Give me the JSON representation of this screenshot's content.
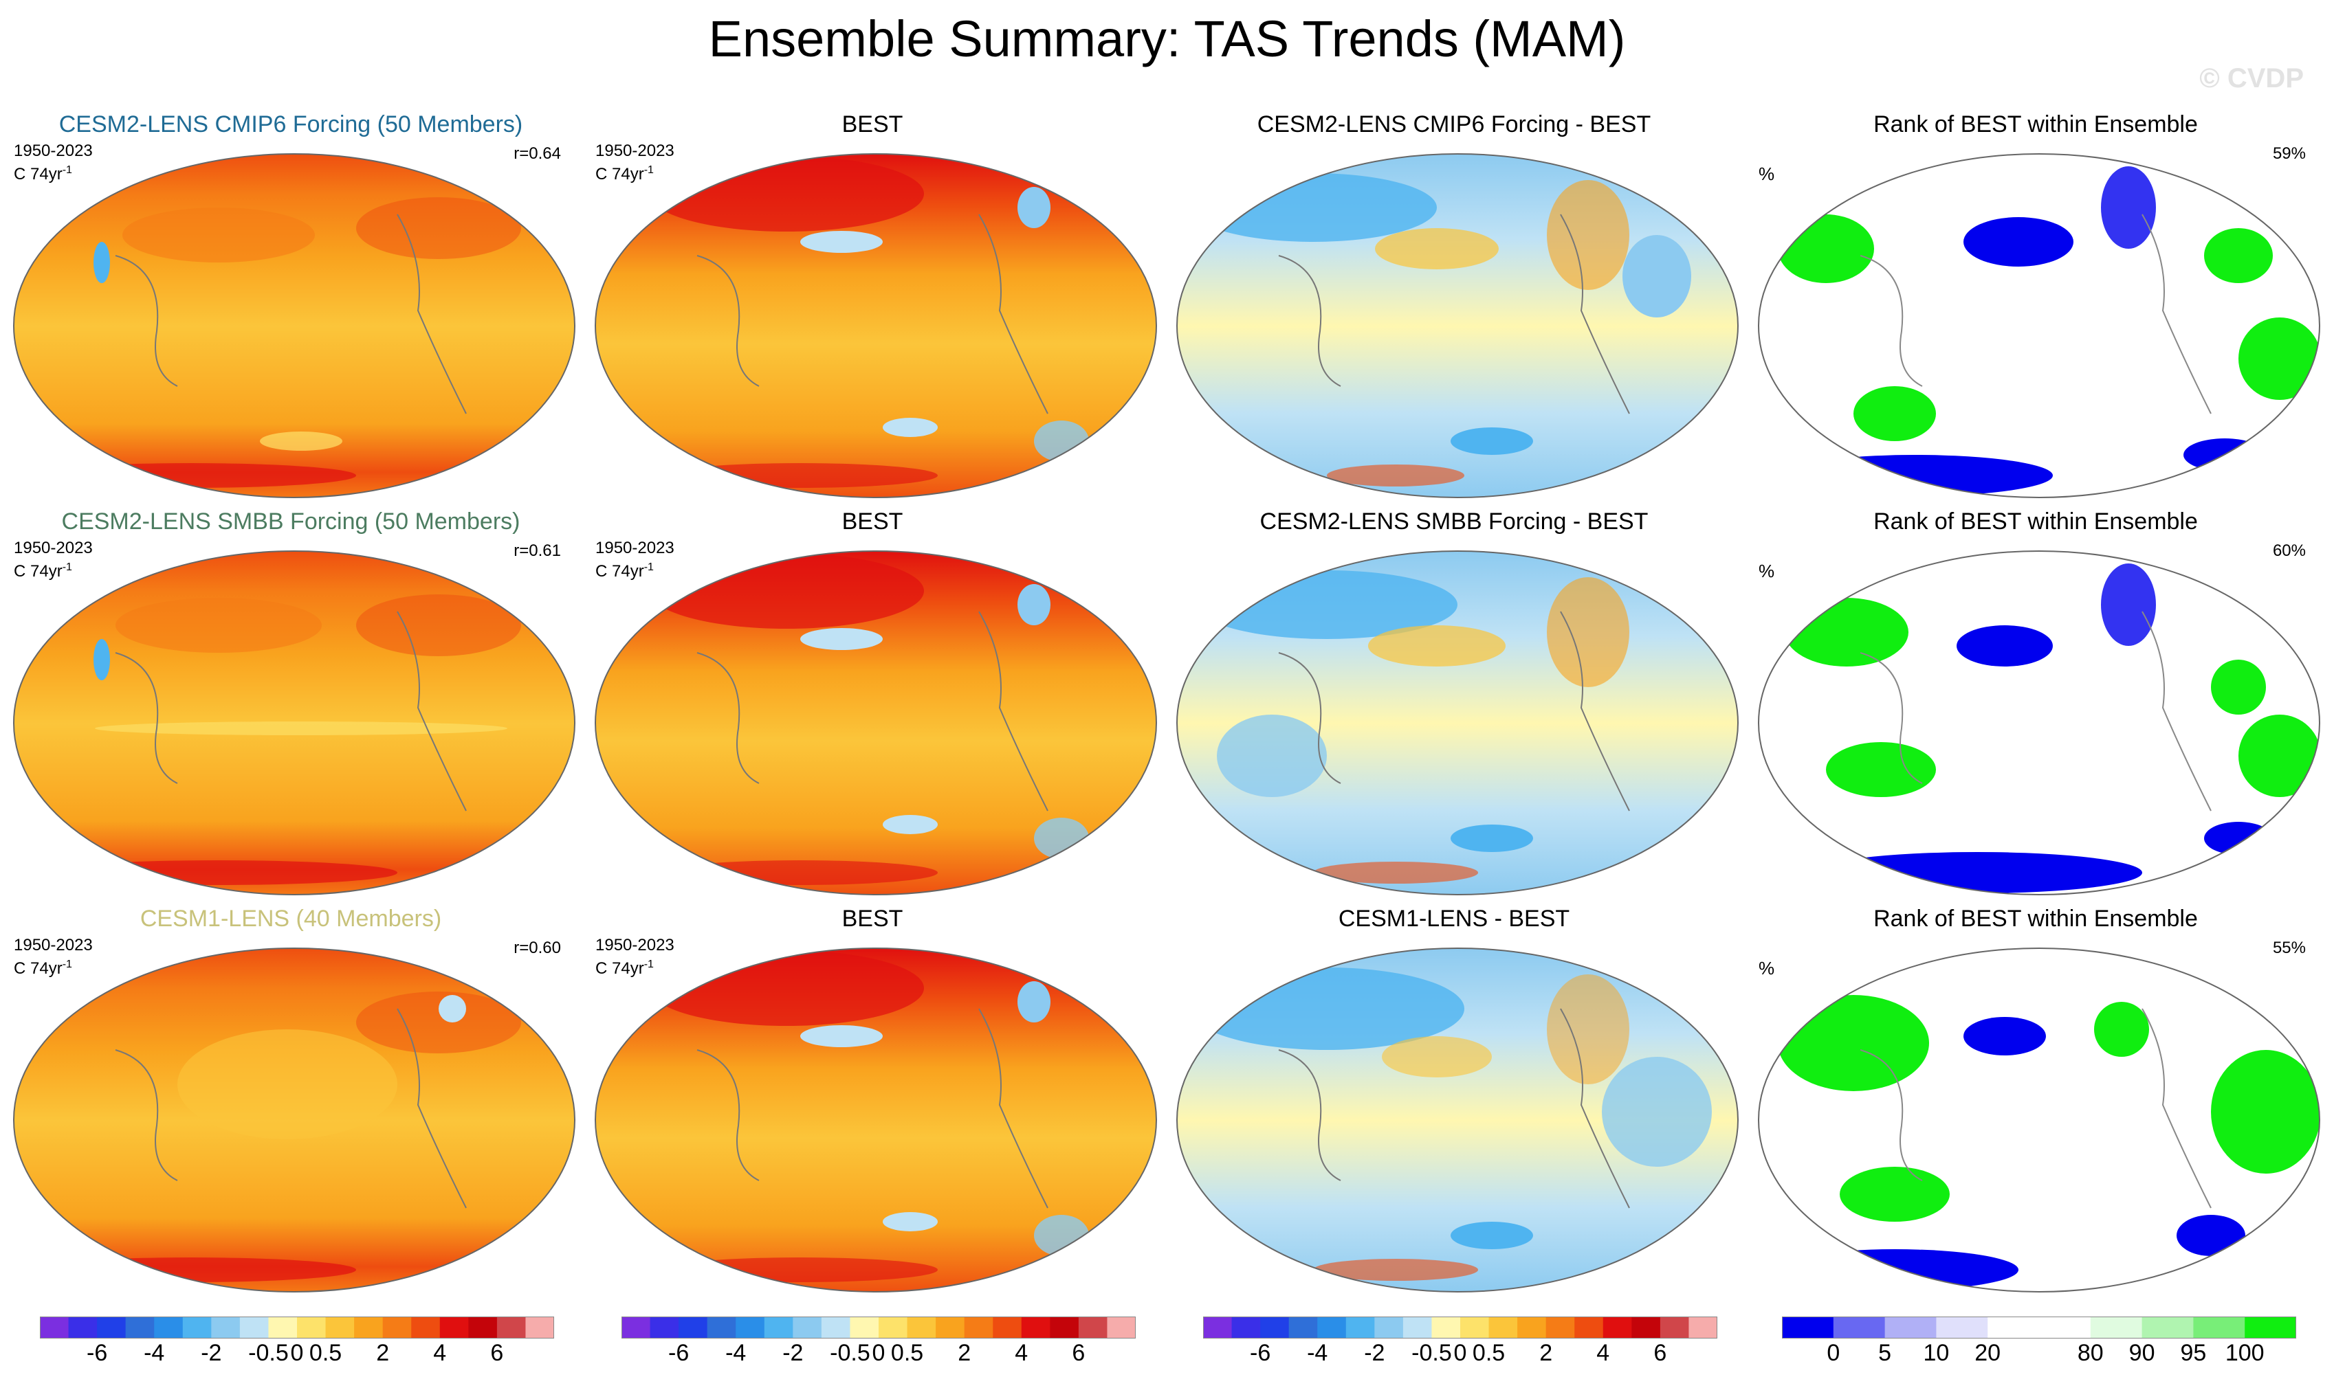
{
  "title": "Ensemble Summary: TAS Trends (MAM)",
  "watermark": "© CVDP",
  "colors": {
    "title_cmip6": "#1f6b95",
    "title_smbb": "#4c7c60",
    "title_cesm1": "#c8c27a"
  },
  "rows": [
    {
      "model_title": "CESM2-LENS CMIP6 Forcing (50 Members)",
      "period": "1950-2023",
      "units_base": "C 74yr",
      "units_exp": "-1",
      "r_value": "r=0.64",
      "obs_title": "BEST",
      "obs_period": "1950-2023",
      "diff_title": "CESM2-LENS CMIP6 Forcing - BEST",
      "rank_title": "Rank of BEST within Ensemble",
      "rank_pctsign": "%",
      "rank_pct": "59%"
    },
    {
      "model_title": "CESM2-LENS SMBB Forcing (50 Members)",
      "period": "1950-2023",
      "units_base": "C 74yr",
      "units_exp": "-1",
      "r_value": "r=0.61",
      "obs_title": "BEST",
      "obs_period": "1950-2023",
      "diff_title": "CESM2-LENS SMBB Forcing - BEST",
      "rank_title": "Rank of BEST within Ensemble",
      "rank_pctsign": "%",
      "rank_pct": "60%"
    },
    {
      "model_title": "CESM1-LENS (40 Members)",
      "period": "1950-2023",
      "units_base": "C 74yr",
      "units_exp": "-1",
      "r_value": "r=0.60",
      "obs_title": "BEST",
      "obs_period": "1950-2023",
      "diff_title": "CESM1-LENS - BEST",
      "rank_title": "Rank of BEST within Ensemble",
      "rank_pctsign": "%",
      "rank_pct": "55%"
    }
  ],
  "chart_data": {
    "type": "map-panels",
    "title": "Ensemble Summary: TAS Trends (MAM)",
    "panel_types": [
      "model ensemble mean trend",
      "observed trend",
      "model minus observed",
      "rank of observations within ensemble"
    ],
    "trend_colorbar": {
      "colors": [
        "#7b2fe0",
        "#3a2fe8",
        "#2040e8",
        "#2f6fd8",
        "#2a8ee8",
        "#4fb4f0",
        "#8ccaf0",
        "#bfe2f5",
        "#fff7b0",
        "#fde26a",
        "#fbc53a",
        "#f9a31e",
        "#f57c16",
        "#ee4d10",
        "#e00f0f",
        "#c4040a",
        "#d0464a",
        "#f6acab"
      ],
      "tick_labels": [
        "-6",
        "-4",
        "-2",
        "-0.5",
        "0",
        "0.5",
        "2",
        "4",
        "6"
      ]
    },
    "rank_colorbar": {
      "colors": [
        "#0000ee",
        "#6868f2",
        "#b0b0f6",
        "#e0e0fb",
        "#ffffff",
        "#ffffff",
        "#e0fbe0",
        "#b0f4b0",
        "#78ee78",
        "#10ee10"
      ],
      "tick_labels": [
        "0",
        "5",
        "10",
        "20",
        "80",
        "90",
        "95",
        "100"
      ]
    }
  }
}
